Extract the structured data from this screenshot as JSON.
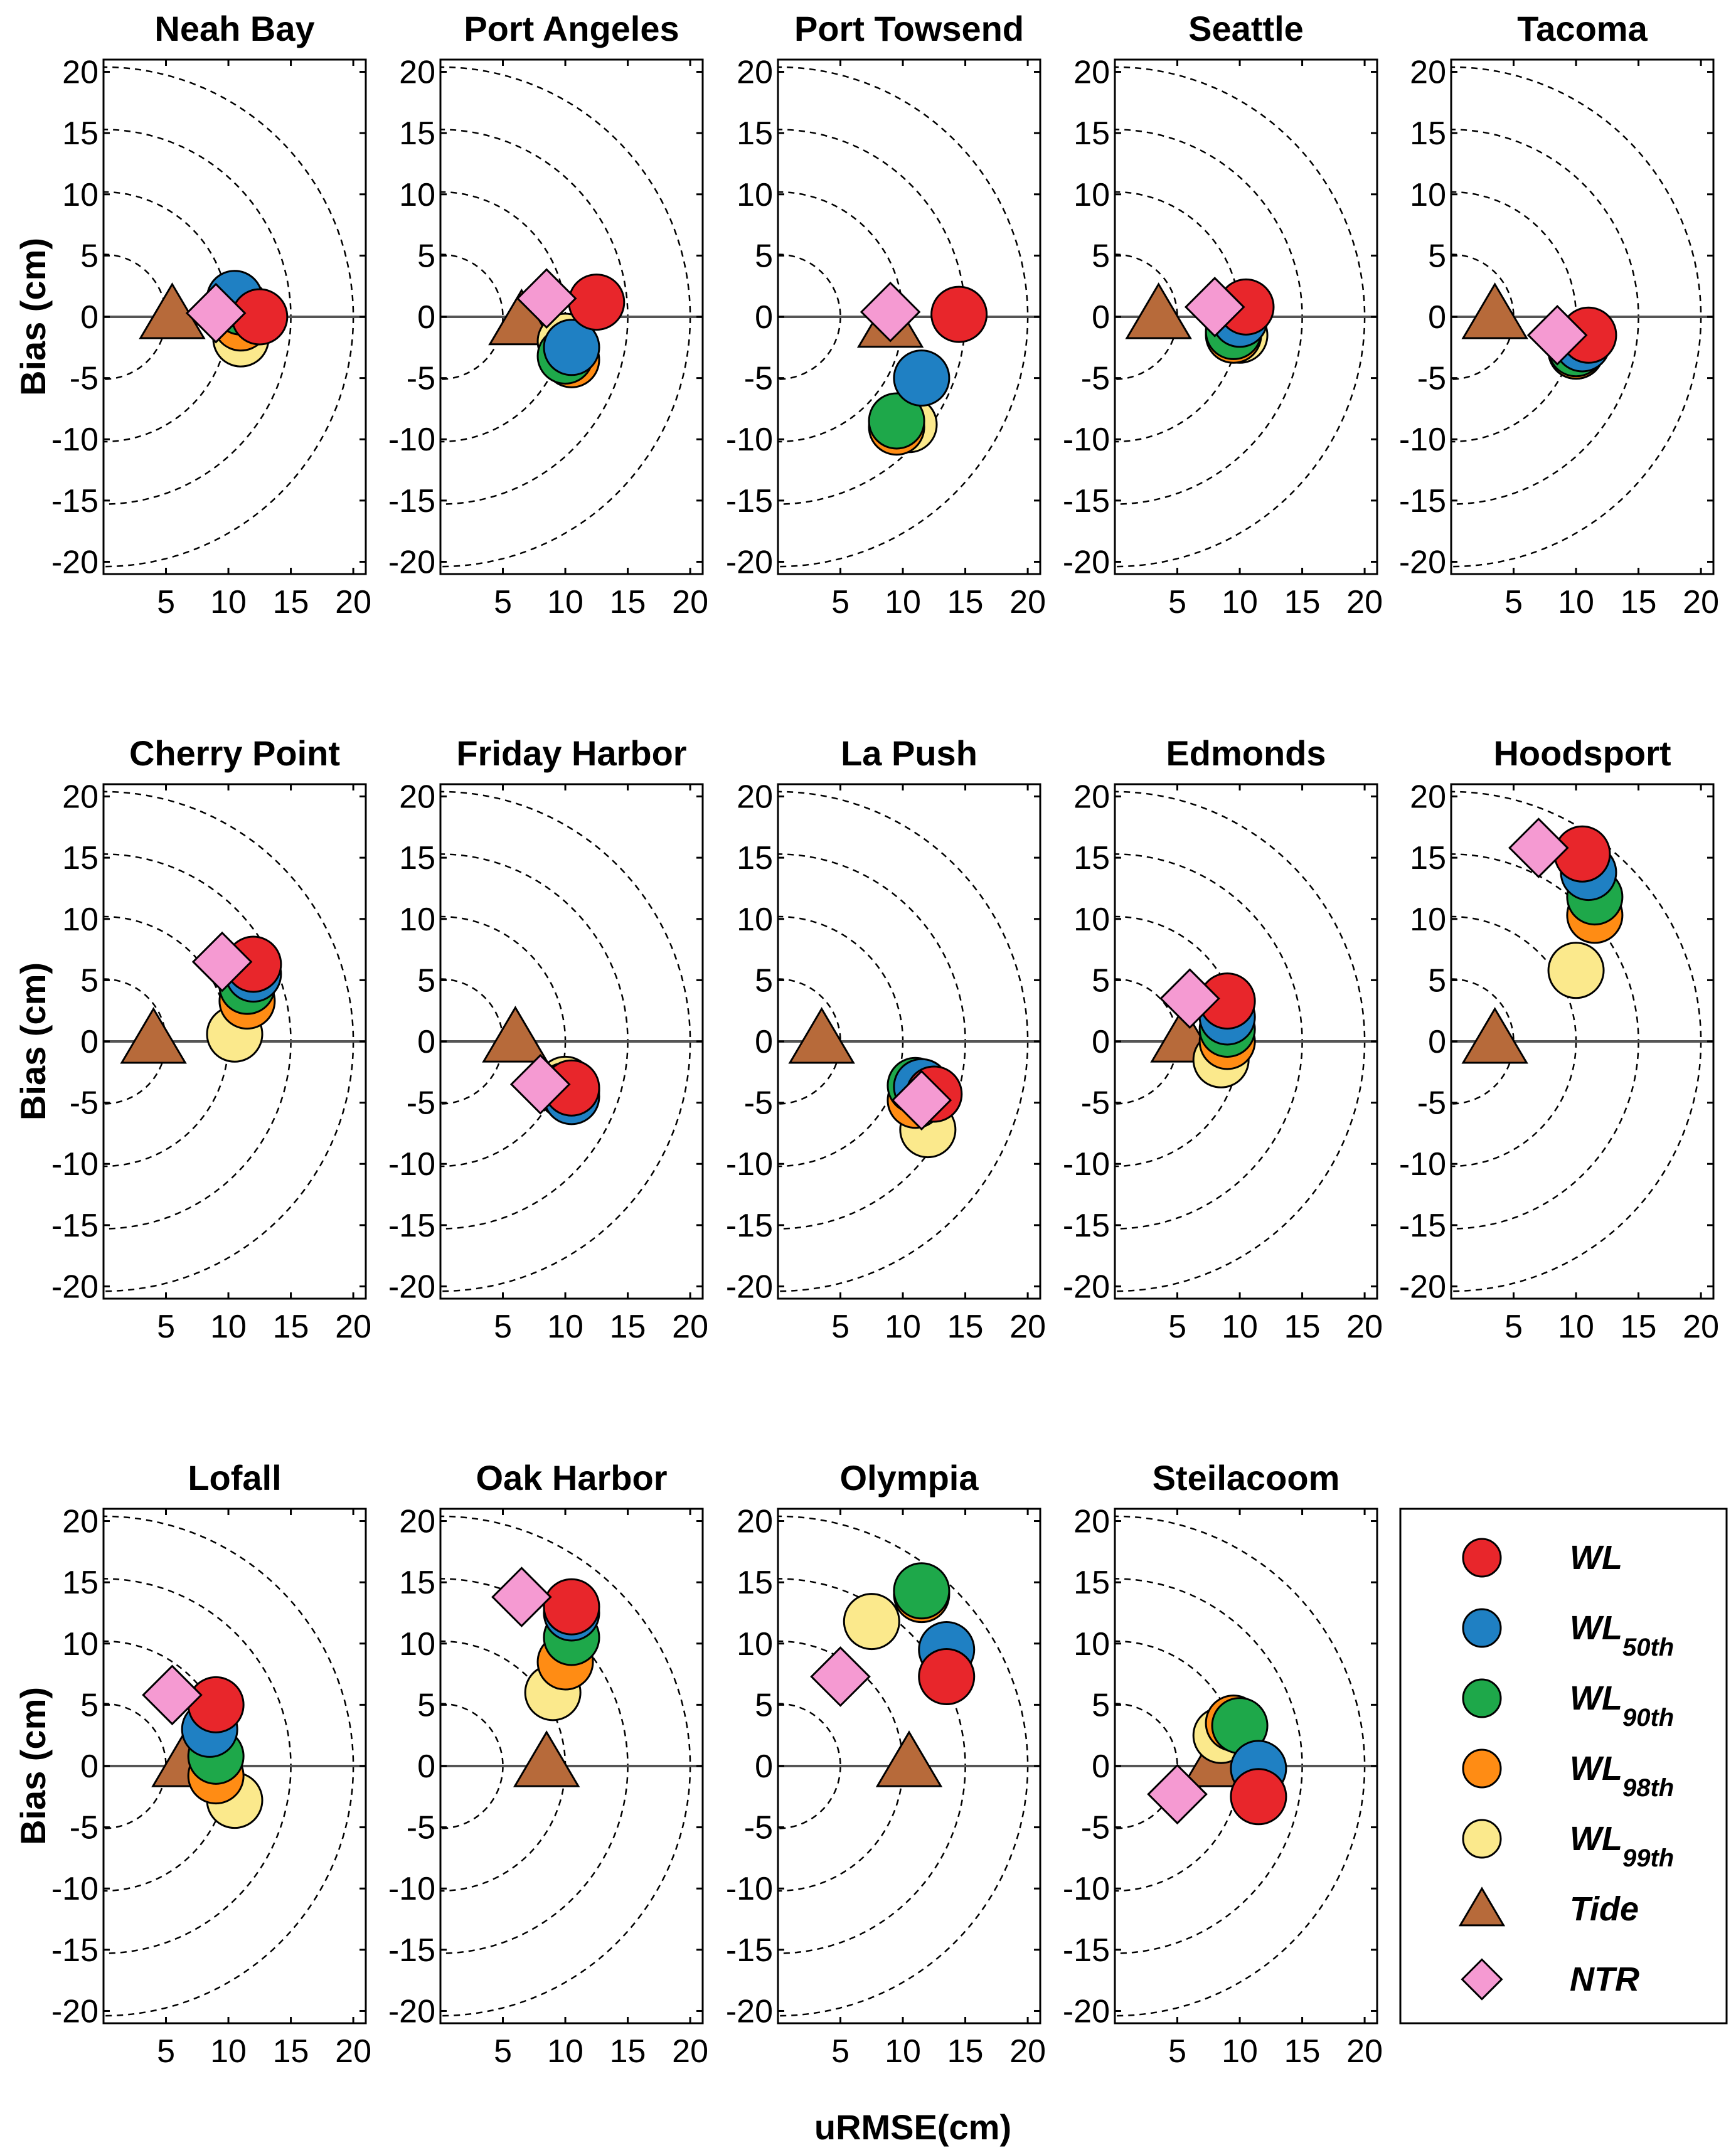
{
  "chart_data": {
    "type": "scatter",
    "xlabel": "uRMSE(cm)",
    "ylabel": "Bias (cm)",
    "xlim": [
      0,
      21
    ],
    "ylim": [
      -21,
      21
    ],
    "x_ticks": [
      "5",
      "10",
      "15",
      "20"
    ],
    "y_ticks": [
      "20",
      "15",
      "10",
      "5",
      "0",
      "-5",
      "-10",
      "-15",
      "-20"
    ],
    "reference_circles": [
      5,
      10,
      15,
      20
    ],
    "series_styles": [
      {
        "name": "WL",
        "sub": "",
        "marker": "circle",
        "color": "#e8262b"
      },
      {
        "name": "WL",
        "sub": "50th",
        "marker": "circle",
        "color": "#1f80c3"
      },
      {
        "name": "WL",
        "sub": "90th",
        "marker": "circle",
        "color": "#1ea84a"
      },
      {
        "name": "WL",
        "sub": "98th",
        "marker": "circle",
        "color": "#ff8c14"
      },
      {
        "name": "WL",
        "sub": "99th",
        "marker": "circle",
        "color": "#fbe98c"
      },
      {
        "name": "Tide",
        "sub": "",
        "marker": "triangle",
        "color": "#b76a3a"
      },
      {
        "name": "NTR",
        "sub": "",
        "marker": "diamond",
        "color": "#f59ad2"
      }
    ],
    "panels": [
      {
        "title": "Neah Bay",
        "points": [
          [
            12.5,
            0
          ],
          [
            10.5,
            1.5
          ],
          [
            11,
            0.8
          ],
          [
            11,
            -0.5
          ],
          [
            11,
            -1.8
          ],
          [
            5.5,
            0.2
          ],
          [
            9,
            0.3
          ]
        ]
      },
      {
        "title": "Port Angeles",
        "points": [
          [
            12.5,
            1.2
          ],
          [
            10.5,
            -2.5
          ],
          [
            10,
            -3.2
          ],
          [
            10.5,
            -3.5
          ],
          [
            10,
            -2
          ],
          [
            6.5,
            -0.3
          ],
          [
            8.5,
            1.5
          ]
        ]
      },
      {
        "title": "Port Towsend",
        "points": [
          [
            14.5,
            0.2
          ],
          [
            11.5,
            -5
          ],
          [
            9.5,
            -8.5
          ],
          [
            9.5,
            -9
          ],
          [
            10.5,
            -8.8
          ],
          [
            9,
            -0.5
          ],
          [
            9,
            0.4
          ]
        ]
      },
      {
        "title": "Seattle",
        "points": [
          [
            10.5,
            0.8
          ],
          [
            10,
            -0.2
          ],
          [
            9.5,
            -1.2
          ],
          [
            9.5,
            -1.5
          ],
          [
            10,
            -1.5
          ],
          [
            3.5,
            0.2
          ],
          [
            8,
            0.8
          ]
        ]
      },
      {
        "title": "Tacoma",
        "points": [
          [
            11,
            -1.5
          ],
          [
            10.5,
            -2.2
          ],
          [
            10,
            -2.6
          ],
          [
            10,
            -2.8
          ],
          [
            10,
            -2.8
          ],
          [
            3.5,
            0.2
          ],
          [
            8.5,
            -1.5
          ]
        ]
      },
      {
        "title": "Cherry Point",
        "points": [
          [
            12,
            6.3
          ],
          [
            12,
            5.5
          ],
          [
            11.5,
            4.5
          ],
          [
            11.5,
            3.3
          ],
          [
            10.5,
            0.6
          ],
          [
            4,
            0.2
          ],
          [
            9.5,
            6.5
          ]
        ]
      },
      {
        "title": "Friday Harbor",
        "points": [
          [
            10.5,
            -3.8
          ],
          [
            10.5,
            -4.5
          ],
          [
            10,
            -4
          ],
          [
            10.5,
            -4
          ],
          [
            10,
            -3.5
          ],
          [
            6,
            0.3
          ],
          [
            8,
            -3.5
          ]
        ]
      },
      {
        "title": "La Push",
        "points": [
          [
            12.5,
            -4.3
          ],
          [
            11.5,
            -3.7
          ],
          [
            11,
            -3.6
          ],
          [
            11,
            -4.8
          ],
          [
            12,
            -7.2
          ],
          [
            3.5,
            0.2
          ],
          [
            11.5,
            -4.8
          ]
        ]
      },
      {
        "title": "Edmonds",
        "points": [
          [
            9,
            3.3
          ],
          [
            9,
            2
          ],
          [
            9,
            1
          ],
          [
            9,
            0
          ],
          [
            8.5,
            -1.5
          ],
          [
            5.5,
            0.3
          ],
          [
            6,
            3.5
          ]
        ]
      },
      {
        "title": "Hoodsport",
        "points": [
          [
            10.5,
            15.3
          ],
          [
            11,
            13.8
          ],
          [
            11.5,
            11.8
          ],
          [
            11.5,
            10.3
          ],
          [
            10,
            5.8
          ],
          [
            3.5,
            0.2
          ],
          [
            7,
            15.8
          ]
        ]
      },
      {
        "title": "Lofall",
        "points": [
          [
            9,
            5
          ],
          [
            8.5,
            3
          ],
          [
            9,
            0.8
          ],
          [
            9,
            -0.8
          ],
          [
            10.5,
            -2.8
          ],
          [
            6.5,
            0.3
          ],
          [
            5.5,
            5.8
          ]
        ]
      },
      {
        "title": "Oak Harbor",
        "points": [
          [
            10.5,
            13
          ],
          [
            10.5,
            12.5
          ],
          [
            10.5,
            10.5
          ],
          [
            10,
            8.5
          ],
          [
            9,
            6
          ],
          [
            8.5,
            0.3
          ],
          [
            6.5,
            13.8
          ]
        ]
      },
      {
        "title": "Olympia",
        "points": [
          [
            13.5,
            7.3
          ],
          [
            13.5,
            9.5
          ],
          [
            11.5,
            14.3
          ],
          [
            11.5,
            14
          ],
          [
            7.5,
            11.8
          ],
          [
            10.5,
            0.3
          ],
          [
            5,
            7.3
          ]
        ]
      },
      {
        "title": "Steilacoom",
        "points": [
          [
            11.5,
            -2.5
          ],
          [
            11.5,
            -0.2
          ],
          [
            10,
            3.3
          ],
          [
            9.5,
            3.5
          ],
          [
            8.5,
            2.5
          ],
          [
            8,
            0.3
          ],
          [
            5,
            -2.3
          ]
        ]
      }
    ]
  }
}
